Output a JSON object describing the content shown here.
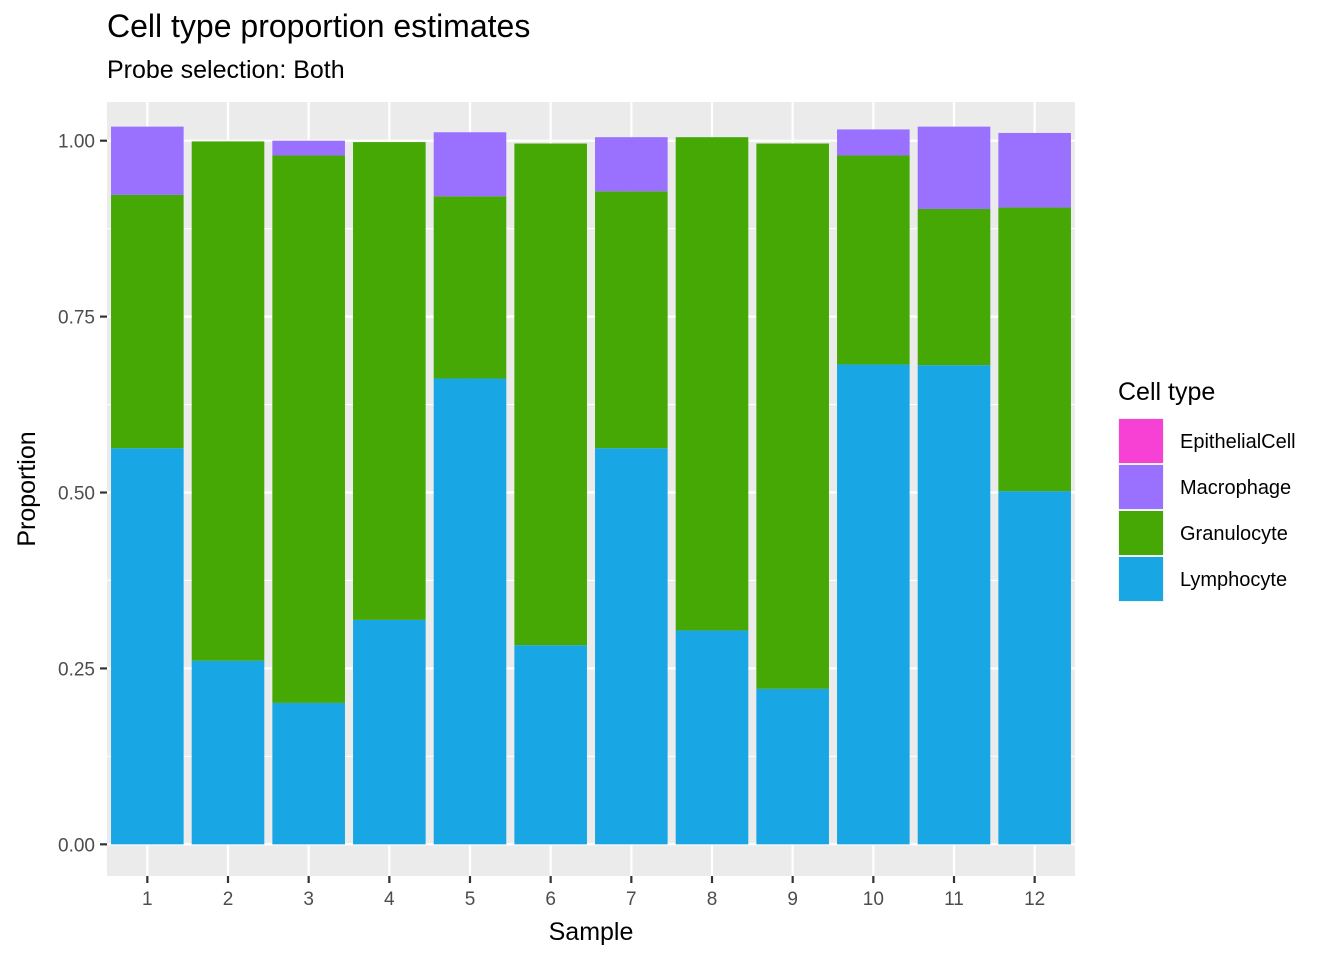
{
  "chart_data": {
    "type": "bar",
    "stacked": true,
    "title": "Cell type proportion estimates",
    "subtitle": "Probe selection: Both",
    "xlabel": "Sample",
    "ylabel": "Proportion",
    "ylim": [
      -0.045,
      1.055
    ],
    "y_ticks": [
      "0.00",
      "0.25",
      "0.50",
      "0.75",
      "1.00"
    ],
    "y_tick_values": [
      0,
      0.25,
      0.5,
      0.75,
      1.0
    ],
    "grid": true,
    "legend_position": "right",
    "legend_title": "Cell type",
    "categories": [
      "1",
      "2",
      "3",
      "4",
      "5",
      "6",
      "7",
      "8",
      "9",
      "10",
      "11",
      "12"
    ],
    "series": [
      {
        "name": "Lymphocyte",
        "color": "#18A6E4",
        "values": [
          0.563,
          0.261,
          0.201,
          0.319,
          0.662,
          0.283,
          0.563,
          0.304,
          0.221,
          0.682,
          0.681,
          0.502
        ]
      },
      {
        "name": "Granulocyte",
        "color": "#45A805",
        "values": [
          0.36,
          0.738,
          0.778,
          0.679,
          0.259,
          0.713,
          0.365,
          0.701,
          0.775,
          0.297,
          0.222,
          0.403
        ]
      },
      {
        "name": "Macrophage",
        "color": "#9A70FF",
        "values": [
          0.097,
          0.0,
          0.021,
          0.0,
          0.091,
          0.0,
          0.077,
          0.0,
          0.0,
          0.037,
          0.117,
          0.106
        ]
      },
      {
        "name": "EpithelialCell",
        "color": "#F740D4",
        "values": [
          0,
          0,
          0,
          0,
          0,
          0,
          0,
          0,
          0,
          0,
          0,
          0
        ]
      }
    ],
    "legend_order": [
      "EpithelialCell",
      "Macrophage",
      "Granulocyte",
      "Lymphocyte"
    ]
  }
}
